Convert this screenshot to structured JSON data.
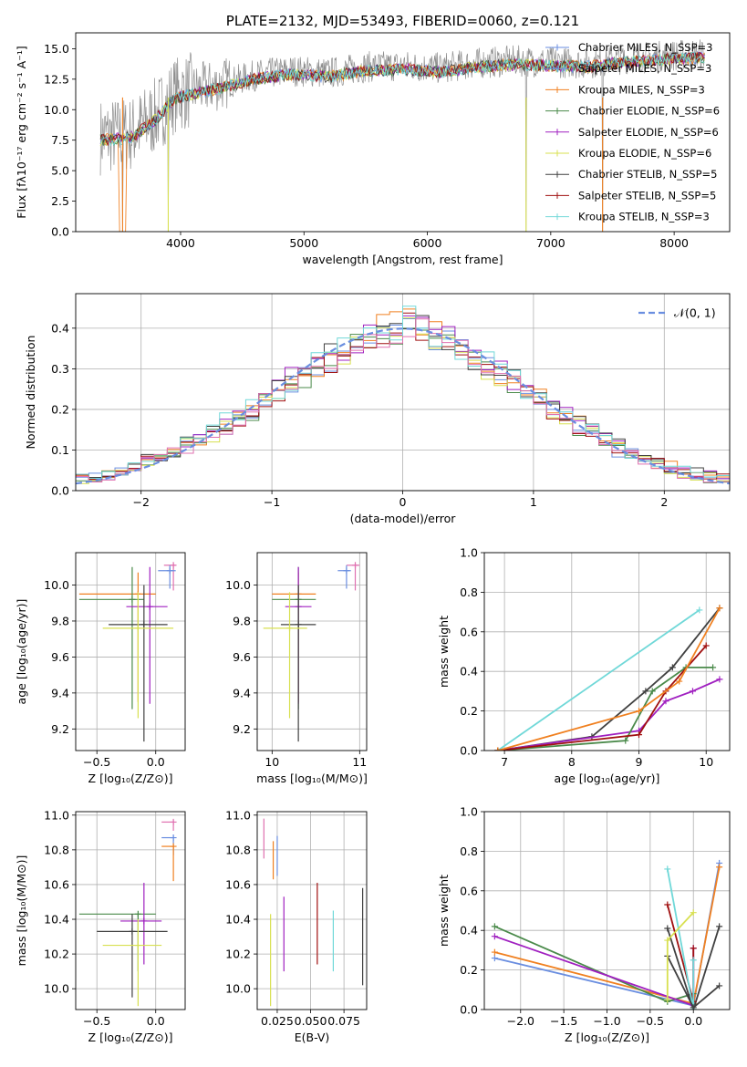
{
  "colors": {
    "series": [
      "#6a8ee0",
      "#8e8e8e",
      "#f08020",
      "#4a8a4a",
      "#a020c0",
      "#d8e050",
      "#404040",
      "#a01010",
      "#70d8d8",
      "#e070b0"
    ],
    "normal_curve": "#6a8ee0"
  },
  "chart_data": [
    {
      "id": "spectrum",
      "type": "line",
      "title": "PLATE=2132, MJD=53493, FIBERID=0060, z=0.121",
      "xlabel": "wavelength [Angstrom, rest frame]",
      "ylabel": "Flux [fλ10⁻¹⁷ erg cm⁻² s⁻¹ A⁻¹]",
      "xlim": [
        3150,
        8450
      ],
      "ylim": [
        0,
        16.3
      ],
      "xticks": [
        4000,
        5000,
        6000,
        7000,
        8000
      ],
      "yticks": [
        0.0,
        2.5,
        5.0,
        7.5,
        10.0,
        12.5,
        15.0
      ],
      "legend_position": "right",
      "legend": [
        "Chabrier MILES, N_SSP=3",
        "Salpeter MILES, N_SSP=3",
        "Kroupa MILES, N_SSP=3",
        "Chabrier ELODIE, N_SSP=6",
        "Salpeter ELODIE, N_SSP=6",
        "Kroupa ELODIE, N_SSP=6",
        "Chabrier STELIB, N_SSP=5",
        "Salpeter STELIB, N_SSP=5",
        "Kroupa STELIB, N_SSP=3"
      ],
      "legend_colors": [
        "#6a8ee0",
        "#6a8ee0",
        "#f08020",
        "#4a8a4a",
        "#a020c0",
        "#d8e050",
        "#404040",
        "#a01010",
        "#70d8d8"
      ],
      "anchors": {
        "x": [
          3350,
          3600,
          3800,
          3950,
          4100,
          4300,
          4600,
          4900,
          5200,
          5500,
          5800,
          6100,
          6400,
          6700,
          7000,
          7300,
          7600,
          7900,
          8250
        ],
        "y": [
          7.8,
          8.0,
          9.5,
          11.2,
          11.6,
          12.0,
          12.8,
          13.2,
          13.0,
          13.5,
          13.6,
          13.4,
          13.8,
          14.0,
          13.9,
          13.8,
          14.2,
          14.4,
          14.6
        ]
      },
      "drops": [
        {
          "x": 3530,
          "y": 0.0
        },
        {
          "x": 3900,
          "y": 0.0
        },
        {
          "x": 6800,
          "y": 0.0
        },
        {
          "x": 7420,
          "y": 0.0
        }
      ]
    },
    {
      "id": "residuals",
      "type": "bar",
      "xlabel": "(data-model)/error",
      "ylabel": "Normed distribution",
      "xlim": [
        -2.5,
        2.5
      ],
      "ylim": [
        0,
        0.485
      ],
      "xticks": [
        -2,
        -1,
        0,
        1,
        2
      ],
      "yticks": [
        0.0,
        0.1,
        0.2,
        0.3,
        0.4
      ],
      "legend": [
        "𝒩(0, 1)"
      ],
      "legend_position": "top-right",
      "bin_width": 0.1,
      "series": [
        {
          "values": [
            0.03,
            0.035,
            0.04,
            0.045,
            0.055,
            0.07,
            0.08,
            0.095,
            0.11,
            0.125,
            0.14,
            0.16,
            0.175,
            0.195,
            0.215,
            0.24,
            0.26,
            0.28,
            0.3,
            0.32,
            0.335,
            0.355,
            0.37,
            0.38,
            0.39,
            0.41,
            0.395,
            0.38,
            0.36,
            0.34,
            0.32,
            0.3,
            0.28,
            0.26,
            0.24,
            0.215,
            0.195,
            0.175,
            0.155,
            0.135,
            0.12,
            0.1,
            0.09,
            0.075,
            0.065,
            0.055,
            0.045,
            0.04,
            0.032,
            0.028
          ]
        },
        {
          "values": [
            0.033,
            0.038,
            0.046,
            0.05,
            0.06,
            0.075,
            0.09,
            0.1,
            0.12,
            0.13,
            0.15,
            0.17,
            0.185,
            0.205,
            0.225,
            0.25,
            0.275,
            0.29,
            0.31,
            0.33,
            0.35,
            0.37,
            0.38,
            0.4,
            0.405,
            0.43,
            0.4,
            0.39,
            0.37,
            0.35,
            0.33,
            0.315,
            0.29,
            0.27,
            0.25,
            0.225,
            0.205,
            0.185,
            0.165,
            0.145,
            0.125,
            0.11,
            0.095,
            0.08,
            0.07,
            0.06,
            0.05,
            0.042,
            0.035,
            0.03
          ]
        }
      ],
      "normal_curve": {
        "x_min": -2.5,
        "x_max": 2.5,
        "mean": 0,
        "sigma": 1
      }
    },
    {
      "id": "age_vs_Z",
      "type": "scatter",
      "xlabel": "Z [log₁₀(Z/Z⊙)]",
      "ylabel": "age  [log₁₀(age/yr)]",
      "xlim": [
        -0.68,
        0.25
      ],
      "ylim": [
        9.08,
        10.18
      ],
      "xticks": [
        -0.5,
        0.0
      ],
      "yticks": [
        9.2,
        9.4,
        9.6,
        9.8,
        10.0
      ],
      "points": [
        {
          "x": 0.15,
          "y": 10.11,
          "xerr": [
            0.08,
            0.02
          ],
          "yerr": [
            0.14,
            0.01
          ]
        },
        {
          "x": 0.12,
          "y": 10.08,
          "xerr": [
            0.1,
            0.05
          ],
          "yerr": [
            0.1,
            0.03
          ]
        },
        {
          "x": -0.15,
          "y": 9.95,
          "xerr": [
            0.5,
            0.15
          ],
          "yerr": [
            0.6,
            0.12
          ]
        },
        {
          "x": -0.2,
          "y": 9.92,
          "xerr": [
            0.45,
            0.1
          ],
          "yerr": [
            0.61,
            0.18
          ]
        },
        {
          "x": -0.05,
          "y": 9.88,
          "xerr": [
            0.2,
            0.15
          ],
          "yerr": [
            0.54,
            0.22
          ]
        },
        {
          "x": -0.1,
          "y": 9.78,
          "xerr": [
            0.3,
            0.2
          ],
          "yerr": [
            0.65,
            0.22
          ]
        },
        {
          "x": -0.15,
          "y": 9.76,
          "xerr": [
            0.3,
            0.3
          ],
          "yerr": [
            0.5,
            0.2
          ]
        }
      ]
    },
    {
      "id": "age_vs_mass",
      "type": "scatter",
      "xlabel": "mass [log₁₀(M/M⊙)]",
      "ylabel": "",
      "xlim": [
        9.83,
        11.08
      ],
      "ylim": [
        9.08,
        10.18
      ],
      "xticks": [
        10,
        11
      ],
      "yticks": [
        9.2,
        9.4,
        9.6,
        9.8,
        10.0
      ],
      "points": [
        {
          "x": 10.95,
          "y": 10.11,
          "xerr": [
            0.1,
            0.05
          ],
          "yerr": [
            0.14,
            0.01
          ]
        },
        {
          "x": 10.85,
          "y": 10.08,
          "xerr": [
            0.1,
            0.05
          ],
          "yerr": [
            0.1,
            0.03
          ]
        },
        {
          "x": 10.3,
          "y": 9.95,
          "xerr": [
            0.3,
            0.2
          ],
          "yerr": [
            0.6,
            0.12
          ]
        },
        {
          "x": 10.3,
          "y": 9.92,
          "xerr": [
            0.3,
            0.2
          ],
          "yerr": [
            0.61,
            0.18
          ]
        },
        {
          "x": 10.3,
          "y": 9.88,
          "xerr": [
            0.15,
            0.15
          ],
          "yerr": [
            0.54,
            0.22
          ]
        },
        {
          "x": 10.3,
          "y": 9.78,
          "xerr": [
            0.2,
            0.2
          ],
          "yerr": [
            0.65,
            0.22
          ]
        },
        {
          "x": 10.2,
          "y": 9.76,
          "xerr": [
            0.3,
            0.2
          ],
          "yerr": [
            0.5,
            0.2
          ]
        }
      ]
    },
    {
      "id": "weight_vs_age",
      "type": "line",
      "xlabel": "age  [log₁₀(age/yr)]",
      "ylabel": "mass weight",
      "xlim": [
        6.7,
        10.35
      ],
      "ylim": [
        0,
        1.0
      ],
      "xticks": [
        7,
        8,
        9,
        10
      ],
      "yticks": [
        0.0,
        0.2,
        0.4,
        0.6,
        0.8,
        1.0
      ],
      "series": [
        {
          "x": [
            6.9,
            9.9
          ],
          "y": [
            0.0,
            0.71
          ]
        },
        {
          "x": [
            6.9,
            8.3,
            9.1,
            9.5,
            10.2
          ],
          "y": [
            0.0,
            0.07,
            0.3,
            0.42,
            0.72
          ]
        },
        {
          "x": [
            6.9,
            9.0,
            9.4,
            9.8,
            10.2
          ],
          "y": [
            0.0,
            0.1,
            0.25,
            0.3,
            0.36
          ]
        },
        {
          "x": [
            6.9,
            8.8,
            9.2,
            9.7,
            10.1
          ],
          "y": [
            0.0,
            0.05,
            0.3,
            0.42,
            0.42
          ]
        },
        {
          "x": [
            6.9,
            9.0,
            9.4,
            10.0
          ],
          "y": [
            0.0,
            0.08,
            0.3,
            0.53
          ]
        },
        {
          "x": [
            6.9,
            9.0,
            9.6,
            10.2
          ],
          "y": [
            0.0,
            0.2,
            0.35,
            0.72
          ]
        }
      ]
    },
    {
      "id": "mass_vs_Z",
      "type": "scatter",
      "xlabel": "Z [log₁₀(Z/Z⊙)]",
      "ylabel": "mass [log₁₀(M/M⊙)]",
      "xlim": [
        -0.68,
        0.25
      ],
      "ylim": [
        9.88,
        11.02
      ],
      "xticks": [
        -0.5,
        0.0
      ],
      "yticks": [
        10.0,
        10.2,
        10.4,
        10.6,
        10.8,
        11.0
      ],
      "points": [
        {
          "x": 0.15,
          "y": 10.96,
          "xerr": [
            0.1,
            0.0
          ],
          "yerr": [
            0.05,
            0.01
          ]
        },
        {
          "x": 0.15,
          "y": 10.87,
          "xerr": [
            0.1,
            0.0
          ],
          "yerr": [
            0.1,
            0.01
          ]
        },
        {
          "x": 0.15,
          "y": 10.82,
          "xerr": [
            0.1,
            0.0
          ],
          "yerr": [
            0.2,
            0.0
          ]
        },
        {
          "x": -0.15,
          "y": 10.43,
          "xerr": [
            0.5,
            0.15
          ],
          "yerr": [
            0.33,
            0.0
          ]
        },
        {
          "x": -0.1,
          "y": 10.39,
          "xerr": [
            0.2,
            0.15
          ],
          "yerr": [
            0.25,
            0.22
          ]
        },
        {
          "x": -0.2,
          "y": 10.33,
          "xerr": [
            0.3,
            0.3
          ],
          "yerr": [
            0.38,
            0.1
          ]
        },
        {
          "x": -0.15,
          "y": 10.25,
          "xerr": [
            0.3,
            0.2
          ],
          "yerr": [
            0.35,
            0.15
          ]
        }
      ]
    },
    {
      "id": "mass_vs_ebv",
      "type": "scatter",
      "xlabel": "E(B-V)",
      "ylabel": "",
      "xlim": [
        0.01,
        0.092
      ],
      "ylim": [
        9.88,
        11.02
      ],
      "xticks": [
        0.025,
        0.05,
        0.075
      ],
      "xtick_labels": [
        "0.025",
        "0.050",
        "0.075"
      ],
      "yticks": [
        10.0,
        10.2,
        10.4,
        10.6,
        10.8,
        11.0
      ],
      "bars": [
        {
          "x": 0.015,
          "low": 10.75,
          "high": 10.98
        },
        {
          "x": 0.02,
          "low": 9.9,
          "high": 10.43
        },
        {
          "x": 0.022,
          "low": 10.63,
          "high": 10.85
        },
        {
          "x": 0.025,
          "low": 10.65,
          "high": 10.88
        },
        {
          "x": 0.03,
          "low": 10.1,
          "high": 10.53
        },
        {
          "x": 0.055,
          "low": 10.14,
          "high": 10.61
        },
        {
          "x": 0.067,
          "low": 10.1,
          "high": 10.45
        },
        {
          "x": 0.089,
          "low": 10.02,
          "high": 10.58
        }
      ]
    },
    {
      "id": "weight_vs_Z",
      "type": "line",
      "xlabel": "Z [log₁₀(Z/Z⊙)]",
      "ylabel": "mass weight",
      "xlim": [
        -2.42,
        0.42
      ],
      "ylim": [
        0,
        1.0
      ],
      "xticks": [
        -2.0,
        -1.5,
        -1.0,
        -0.5,
        0.0
      ],
      "yticks": [
        0.0,
        0.2,
        0.4,
        0.6,
        0.8,
        1.0
      ],
      "series": [
        {
          "x": [
            -2.3,
            0.0,
            0.3
          ],
          "y": [
            0.26,
            0.02,
            0.74
          ]
        },
        {
          "x": [
            -2.3,
            0.0,
            0.3
          ],
          "y": [
            0.29,
            0.03,
            0.72
          ]
        },
        {
          "x": [
            -2.3,
            -0.3,
            0.0
          ],
          "y": [
            0.42,
            0.04,
            0.08
          ]
        },
        {
          "x": [
            -2.3,
            0.0,
            0.0
          ],
          "y": [
            0.37,
            0.02,
            0.31
          ]
        },
        {
          "x": [
            -0.3,
            0.0,
            0.3
          ],
          "y": [
            0.41,
            0.0,
            0.42
          ]
        },
        {
          "x": [
            -0.3,
            0.0,
            0.0
          ],
          "y": [
            0.53,
            0.04,
            0.31
          ]
        },
        {
          "x": [
            -0.3,
            0.0,
            0.0
          ],
          "y": [
            0.71,
            0.0,
            0.25
          ]
        },
        {
          "x": [
            -0.3,
            0.0,
            0.3
          ],
          "y": [
            0.27,
            0.01,
            0.12
          ]
        },
        {
          "x": [
            -0.3,
            -0.3,
            0.0
          ],
          "y": [
            0.05,
            0.35,
            0.49
          ]
        }
      ]
    }
  ]
}
